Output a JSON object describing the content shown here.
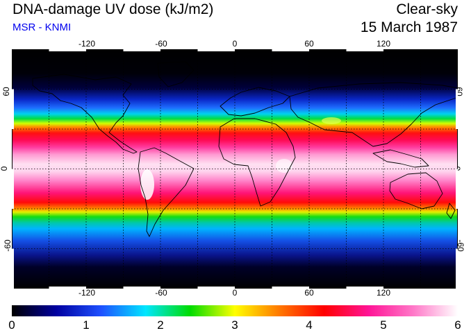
{
  "header": {
    "title": "DNA-damage UV dose (kJ/m2)",
    "source": "MSR - KNMI",
    "sky_condition": "Clear-sky",
    "date": "15 March 1987"
  },
  "map": {
    "projection": "equirectangular",
    "longitude_ticks": [
      "-120",
      "-60",
      "0",
      "60",
      "120"
    ],
    "latitude_ticks": [
      "60",
      "0",
      "-60"
    ],
    "gridlines": "dotted, every 30 degrees"
  },
  "colorbar": {
    "min": 0,
    "max": 6,
    "labels": [
      "0",
      "1",
      "2",
      "3",
      "4",
      "5",
      "6"
    ],
    "colors": [
      "#000000",
      "#0000a0",
      "#1e50ff",
      "#00e6ff",
      "#00dc00",
      "#ffff00",
      "#ff7800",
      "#ff0000",
      "#ff1496",
      "#ff78c8",
      "#ffffff"
    ]
  }
}
